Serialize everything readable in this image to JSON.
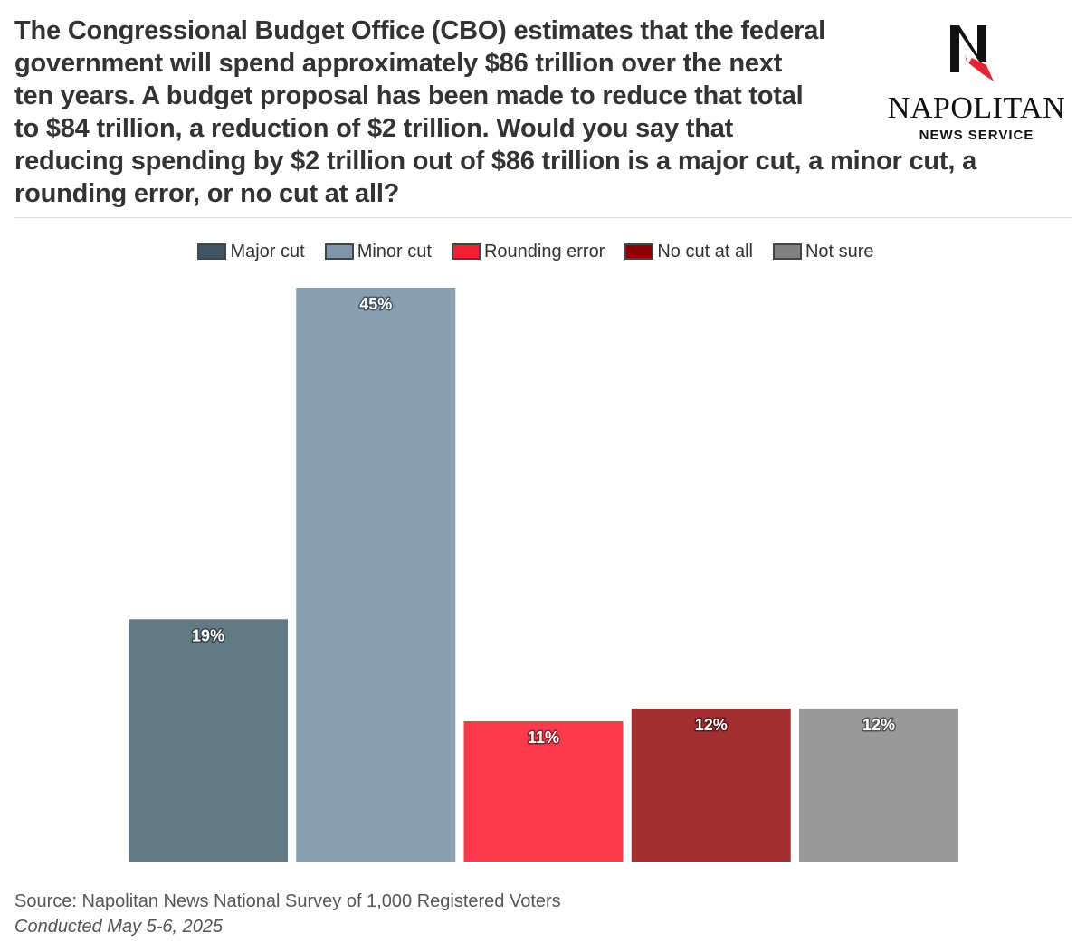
{
  "header": {
    "title_lines": [
      "The Congressional Budget Office (CBO) estimates that the federal",
      "government will spend approximately $86 trillion over the next",
      "ten years. A budget proposal has been made to reduce that total",
      "to $84 trillion, a reduction of $2 trillion. Would you say that",
      "reducing spending by $2 trillion out of $86 trillion is a major cut, a minor cut, a",
      "rounding error, or no cut at all?"
    ]
  },
  "logo": {
    "name": "NAPOLITAN",
    "subtitle": "NEWS SERVICE",
    "icon": "napolitan-n-eagle-icon"
  },
  "chart_data": {
    "type": "bar",
    "categories": [
      "Major cut",
      "Minor cut",
      "Rounding error",
      "No cut at all",
      "Not sure"
    ],
    "values": [
      19,
      45,
      11,
      12,
      12
    ],
    "value_labels": [
      "19%",
      "45%",
      "11%",
      "12%",
      "12%"
    ],
    "colors": [
      "#627a86",
      "#889fb1",
      "#fc3a4c",
      "#a32e31",
      "#999999"
    ],
    "legend_colors": [
      "#3f5566",
      "#7f96aa",
      "#f42032",
      "#8b0000",
      "#808080"
    ],
    "legend": [
      "Major cut",
      "Minor cut",
      "Rounding error",
      "No cut at all",
      "Not sure"
    ],
    "legend_position": "top-center",
    "ylim": [
      0,
      45
    ],
    "grid": false,
    "axes_visible": false
  },
  "footer": {
    "source": "Source: Napolitan News National Survey of 1,000 Registered Voters",
    "conducted": "Conducted May 5-6, 2025"
  }
}
